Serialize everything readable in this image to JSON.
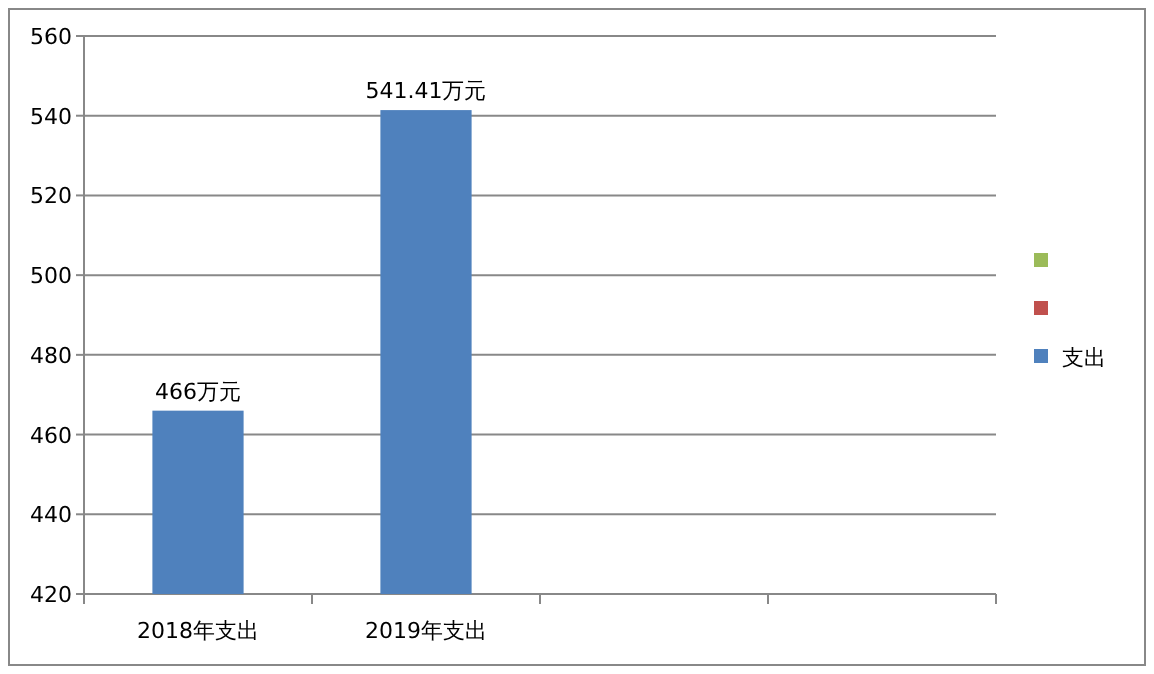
{
  "chart_data": {
    "type": "bar",
    "categories": [
      "2018年支出",
      "2019年支出",
      null,
      null
    ],
    "series": [
      {
        "name": "支出",
        "color": "#4f81bd",
        "values": [
          466,
          541.41,
          null,
          null
        ],
        "value_labels": [
          "466万元",
          "541.41万元",
          null,
          null
        ]
      },
      {
        "color": "#c0504d",
        "values": [
          null,
          null,
          null,
          null
        ]
      },
      {
        "color": "#9bbb59",
        "values": [
          null,
          null,
          null,
          null
        ]
      }
    ],
    "ylim": [
      420,
      560
    ],
    "yticks": [
      420,
      440,
      460,
      480,
      500,
      520,
      540,
      560
    ],
    "grid": "y",
    "legend": "right"
  }
}
